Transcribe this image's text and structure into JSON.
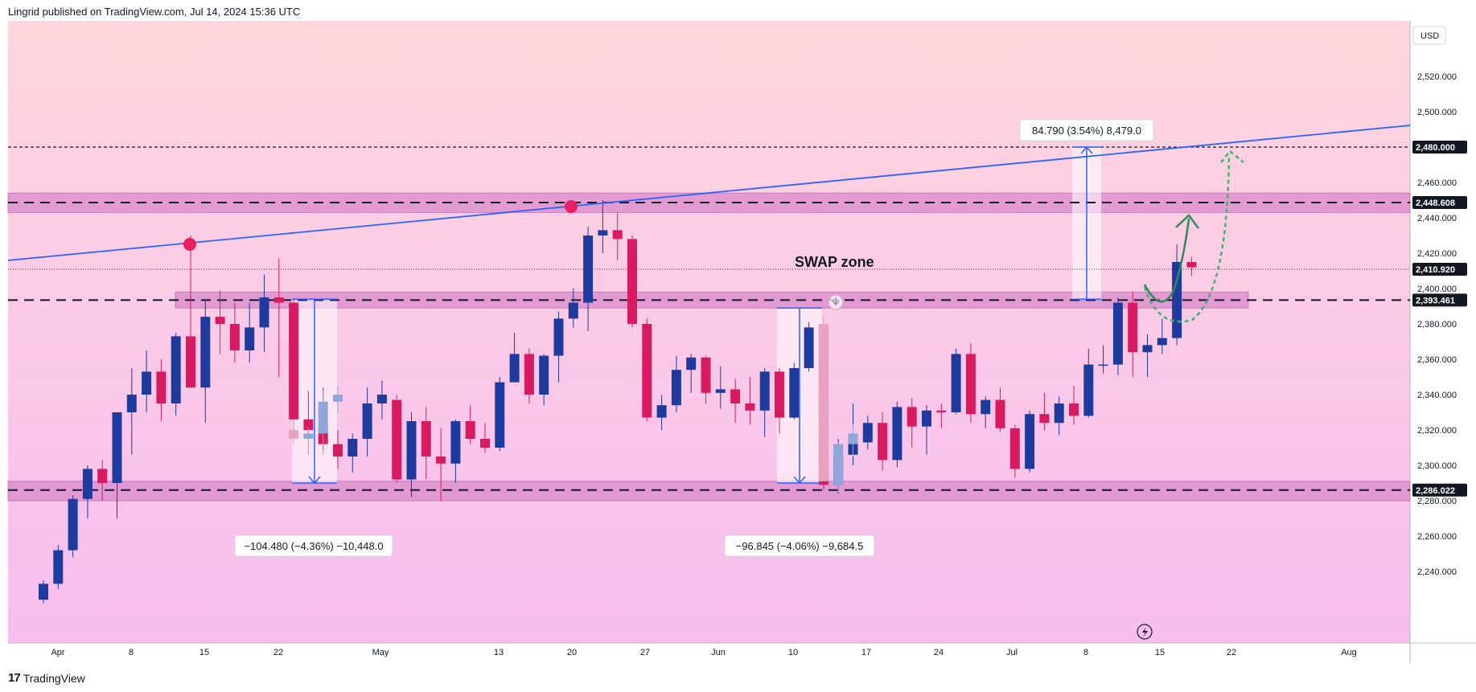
{
  "header": {
    "publisher": "Lingrid published on TradingView.com, Jul 14, 2024 15:36 UTC"
  },
  "footer": {
    "brand": "TradingView",
    "logo": "tv-logo-icon"
  },
  "colors": {
    "bull": "#1E3A9C",
    "bear": "#D81B60",
    "trendline": "#2962FF",
    "zone": "#D98ACB",
    "arrow": "#2E8B57",
    "pivot": "#E91E63"
  },
  "chart_data": {
    "type": "candlestick",
    "currency": "USD",
    "y_ticks": [
      "2,520.000",
      "2,500.000",
      "2,480.000",
      "2,460.000",
      "2,440.000",
      "2,420.000",
      "2,400.000",
      "2,380.000",
      "2,360.000",
      "2,340.000",
      "2,320.000",
      "2,300.000",
      "2,280.000",
      "2,260.000",
      "2,240.000"
    ],
    "x_ticks": [
      "Apr",
      "8",
      "15",
      "22",
      "May",
      "13",
      "20",
      "27",
      "Jun",
      "10",
      "17",
      "24",
      "Jul",
      "8",
      "15",
      "22",
      "Aug"
    ],
    "price_labels": [
      {
        "value": 2480.0,
        "label": "2,480.000"
      },
      {
        "value": 2448.608,
        "label": "2,448.608"
      },
      {
        "value": 2410.92,
        "label": "2,410.920"
      },
      {
        "value": 2393.461,
        "label": "2,393.461"
      },
      {
        "value": 2286.022,
        "label": "2,286.022"
      }
    ],
    "zones": [
      {
        "low": 2443,
        "high": 2454
      },
      {
        "low": 2389,
        "high": 2398
      },
      {
        "low": 2280,
        "high": 2291
      }
    ],
    "annotations": {
      "swap_zone": "SWAP zone",
      "measure_1": "−104.480 (−4.36%) −10,448.0",
      "measure_2": "−96.845 (−4.06%) −9,684.5",
      "measure_3": "84.790 (3.54%) 8,479.0"
    },
    "candles": [
      [
        2224,
        2235,
        2222,
        2233
      ],
      [
        2233,
        2255,
        2230,
        2252
      ],
      [
        2252,
        2283,
        2248,
        2281
      ],
      [
        2281,
        2300,
        2270,
        2298
      ],
      [
        2298,
        2303,
        2280,
        2290
      ],
      [
        2290,
        2330,
        2270,
        2330
      ],
      [
        2330,
        2355,
        2306,
        2340
      ],
      [
        2340,
        2365,
        2330,
        2353
      ],
      [
        2353,
        2360,
        2325,
        2335
      ],
      [
        2335,
        2375,
        2328,
        2373
      ],
      [
        2373,
        2430,
        2344,
        2344
      ],
      [
        2344,
        2394,
        2324,
        2384
      ],
      [
        2384,
        2399,
        2363,
        2380
      ],
      [
        2380,
        2392,
        2358,
        2365
      ],
      [
        2365,
        2392,
        2358,
        2378
      ],
      [
        2378,
        2408,
        2364,
        2395
      ],
      [
        2395,
        2417,
        2350,
        2392
      ],
      [
        2392,
        2394,
        2318,
        2326
      ],
      [
        2326,
        2342,
        2315,
        2320
      ],
      [
        2320,
        2344,
        2308,
        2312
      ],
      [
        2312,
        2320,
        2298,
        2305
      ],
      [
        2305,
        2318,
        2296,
        2315
      ],
      [
        2315,
        2344,
        2305,
        2335
      ],
      [
        2335,
        2348,
        2326,
        2340
      ],
      [
        2337,
        2340,
        2290,
        2292
      ],
      [
        2292,
        2330,
        2282,
        2325
      ],
      [
        2325,
        2333,
        2292,
        2305
      ],
      [
        2305,
        2321,
        2280,
        2301
      ],
      [
        2301,
        2326,
        2290,
        2325
      ],
      [
        2325,
        2334,
        2312,
        2315
      ],
      [
        2315,
        2324,
        2307,
        2310
      ],
      [
        2310,
        2350,
        2308,
        2347
      ],
      [
        2347,
        2375,
        2347,
        2363
      ],
      [
        2363,
        2366,
        2335,
        2340
      ],
      [
        2340,
        2363,
        2334,
        2362
      ],
      [
        2362,
        2387,
        2347,
        2383
      ],
      [
        2383,
        2400,
        2378,
        2392
      ],
      [
        2392,
        2435,
        2376,
        2430
      ],
      [
        2430,
        2450,
        2420,
        2433
      ],
      [
        2433,
        2443,
        2416,
        2428
      ],
      [
        2428,
        2430,
        2378,
        2380
      ],
      [
        2380,
        2383,
        2325,
        2327
      ],
      [
        2327,
        2340,
        2320,
        2334
      ],
      [
        2334,
        2362,
        2330,
        2354
      ],
      [
        2354,
        2363,
        2341,
        2361
      ],
      [
        2361,
        2362,
        2335,
        2341
      ],
      [
        2341,
        2356,
        2332,
        2343
      ],
      [
        2343,
        2349,
        2324,
        2335
      ],
      [
        2335,
        2350,
        2323,
        2331
      ],
      [
        2331,
        2355,
        2316,
        2353
      ],
      [
        2353,
        2355,
        2318,
        2327
      ],
      [
        2327,
        2358,
        2326,
        2355
      ],
      [
        2355,
        2381,
        2353,
        2378
      ],
      [
        2378,
        2380,
        2286,
        2289
      ],
      [
        2289,
        2315,
        2284,
        2306
      ],
      [
        2306,
        2335,
        2300,
        2313
      ],
      [
        2313,
        2328,
        2309,
        2324
      ],
      [
        2324,
        2330,
        2297,
        2303
      ],
      [
        2303,
        2336,
        2299,
        2333
      ],
      [
        2333,
        2338,
        2310,
        2322
      ],
      [
        2322,
        2334,
        2306,
        2331
      ],
      [
        2331,
        2335,
        2321,
        2330
      ],
      [
        2330,
        2366,
        2329,
        2363
      ],
      [
        2363,
        2369,
        2324,
        2329
      ],
      [
        2329,
        2339,
        2321,
        2337
      ],
      [
        2337,
        2344,
        2319,
        2321
      ],
      [
        2321,
        2323,
        2293,
        2298
      ],
      [
        2298,
        2331,
        2296,
        2329
      ],
      [
        2329,
        2341,
        2320,
        2324
      ],
      [
        2324,
        2339,
        2317,
        2335
      ],
      [
        2335,
        2345,
        2323,
        2328
      ],
      [
        2328,
        2366,
        2327,
        2357
      ],
      [
        2357,
        2368,
        2352,
        2357
      ],
      [
        2357,
        2395,
        2351,
        2392
      ],
      [
        2392,
        2398,
        2350,
        2364
      ],
      [
        2364,
        2374,
        2350,
        2368
      ],
      [
        2368,
        2383,
        2363,
        2372
      ],
      [
        2372,
        2425,
        2368,
        2415
      ],
      [
        2415,
        2418,
        2407,
        2412
      ]
    ],
    "ghost_candles": [
      [
        2320,
        2326,
        2312,
        2315
      ],
      [
        2315,
        2321,
        2306,
        2318
      ],
      [
        2318,
        2342,
        2306,
        2336
      ],
      [
        2336,
        2345,
        2330,
        2340
      ],
      [
        2380,
        2385,
        2296,
        2291
      ],
      [
        2289,
        2313,
        2285,
        2312
      ],
      [
        2312,
        2323,
        2305,
        2318
      ]
    ]
  }
}
